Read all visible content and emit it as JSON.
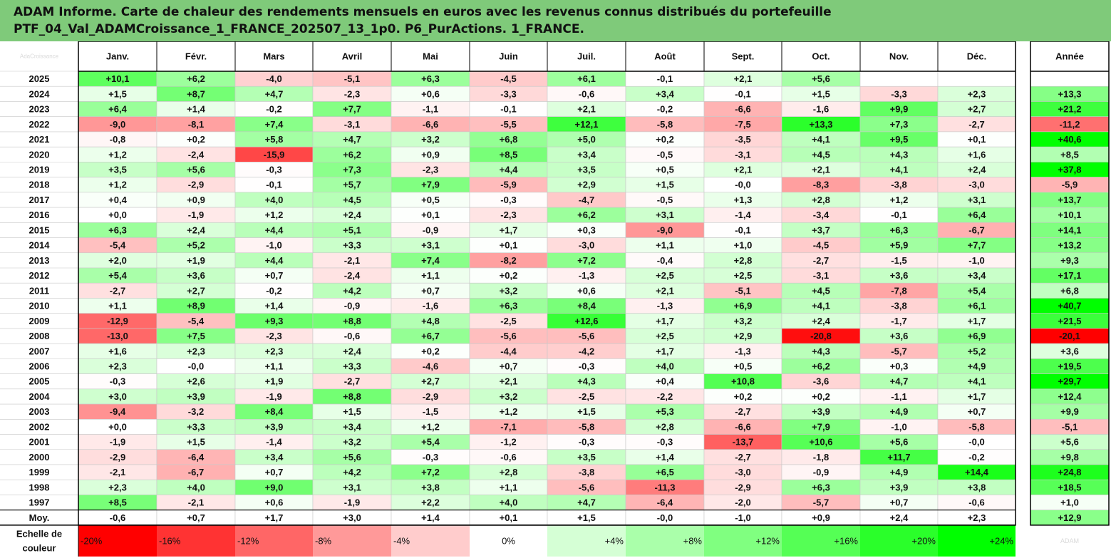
{
  "header": {
    "title_line1": "ADAM Informe. Carte de chaleur des rendements mensuels en euros avec les revenus connus distribués du portefeuille",
    "title_line2": "PTF_04_Val_ADAMCroissance_1_FRANCE_202507_13_1p0. P6_PurActions. 1_FRANCE."
  },
  "corner_watermark": "AdaCroissance",
  "scale_label": [
    "Echelle de",
    "couleur"
  ],
  "scale_steps": [
    "-20%",
    "-16%",
    "-12%",
    "-8%",
    "-4%",
    "0%",
    "+4%",
    "+8%",
    "+12%",
    "+16%",
    "+20%",
    "+24%"
  ],
  "scale_steps_values": [
    -20,
    -16,
    -12,
    -8,
    -4,
    0,
    4,
    8,
    12,
    16,
    20,
    24
  ],
  "bottom_right_watermark": "ADAM",
  "colors": {
    "header_bg": "#7fca7a",
    "negative_max": "#ff0000",
    "positive_max": "#00ff00",
    "neutral": "#ffffff",
    "grid": "#c8c8c8",
    "border": "#000000"
  },
  "chart_data": {
    "type": "heatmap",
    "title": "ADAM Informe. Carte de chaleur des rendements mensuels en euros avec les revenus connus distribués du portefeuille PTF_04_Val_ADAMCroissance_1_FRANCE_202507_13_1p0. P6_PurActions. 1_FRANCE.",
    "columns": [
      "Janv.",
      "Févr.",
      "Mars",
      "Avril",
      "Mai",
      "Juin",
      "Juil.",
      "Août",
      "Sept.",
      "Oct.",
      "Nov.",
      "Déc."
    ],
    "year_column": "Année",
    "rows": [
      {
        "label": "2025",
        "values": [
          "+10,1",
          "+6,2",
          "-4,0",
          "-5,1",
          "+6,3",
          "-4,5",
          "+6,1",
          "-0,1",
          "+2,1",
          "+5,6",
          "",
          ""
        ],
        "year": ""
      },
      {
        "label": "2024",
        "values": [
          "+1,5",
          "+8,7",
          "+4,7",
          "-2,3",
          "+0,6",
          "-3,3",
          "-0,6",
          "+3,4",
          "-0,1",
          "+1,5",
          "-3,3",
          "+2,3"
        ],
        "year": "+13,3"
      },
      {
        "label": "2023",
        "values": [
          "+6,4",
          "+1,4",
          "-0,2",
          "+7,7",
          "-1,1",
          "-0,1",
          "+2,1",
          "-0,2",
          "-6,6",
          "-1,6",
          "+9,9",
          "+2,7"
        ],
        "year": "+21,2"
      },
      {
        "label": "2022",
        "values": [
          "-9,0",
          "-8,1",
          "+7,4",
          "-3,1",
          "-6,6",
          "-5,5",
          "+12,1",
          "-5,8",
          "-7,5",
          "+13,3",
          "+7,3",
          "-2,7"
        ],
        "year": "-11,2"
      },
      {
        "label": "2021",
        "values": [
          "-0,8",
          "+0,2",
          "+5,8",
          "+4,7",
          "+3,2",
          "+6,8",
          "+5,0",
          "+0,2",
          "-3,5",
          "+4,1",
          "+9,5",
          "+0,1"
        ],
        "year": "+40,6"
      },
      {
        "label": "2020",
        "values": [
          "+1,2",
          "-2,4",
          "-15,9",
          "+6,2",
          "+0,9",
          "+8,5",
          "+3,4",
          "-0,5",
          "-3,1",
          "+4,5",
          "+4,3",
          "+1,6"
        ],
        "year": "+8,5"
      },
      {
        "label": "2019",
        "values": [
          "+3,5",
          "+5,6",
          "-0,3",
          "+7,3",
          "-2,3",
          "+4,4",
          "+3,5",
          "+0,5",
          "+2,1",
          "+2,1",
          "+4,1",
          "+2,4"
        ],
        "year": "+37,8"
      },
      {
        "label": "2018",
        "values": [
          "+1,2",
          "-2,9",
          "-0,1",
          "+5,7",
          "+7,9",
          "-5,9",
          "+2,9",
          "+1,5",
          "-0,0",
          "-8,3",
          "-3,8",
          "-3,0"
        ],
        "year": "-5,9"
      },
      {
        "label": "2017",
        "values": [
          "+0,4",
          "+0,9",
          "+4,0",
          "+4,5",
          "+0,5",
          "-0,3",
          "-4,7",
          "-0,5",
          "+1,3",
          "+2,8",
          "+1,2",
          "+3,1"
        ],
        "year": "+13,7"
      },
      {
        "label": "2016",
        "values": [
          "+0,0",
          "-1,9",
          "+1,2",
          "+2,4",
          "+0,1",
          "-2,3",
          "+6,2",
          "+3,1",
          "-1,4",
          "-3,4",
          "-0,1",
          "+6,4"
        ],
        "year": "+10,1"
      },
      {
        "label": "2015",
        "values": [
          "+6,3",
          "+2,4",
          "+4,4",
          "+5,1",
          "-0,9",
          "+1,7",
          "+0,3",
          "-9,0",
          "-0,1",
          "+3,7",
          "+6,3",
          "-6,7"
        ],
        "year": "+14,1"
      },
      {
        "label": "2014",
        "values": [
          "-5,4",
          "+5,2",
          "-1,0",
          "+3,3",
          "+3,1",
          "+0,1",
          "-3,0",
          "+1,1",
          "+1,0",
          "-4,5",
          "+5,9",
          "+7,7"
        ],
        "year": "+13,2"
      },
      {
        "label": "2013",
        "values": [
          "+2,0",
          "+1,9",
          "+4,4",
          "-2,1",
          "+7,4",
          "-8,2",
          "+7,2",
          "-0,4",
          "+2,8",
          "-2,7",
          "-1,5",
          "-1,0"
        ],
        "year": "+9,3"
      },
      {
        "label": "2012",
        "values": [
          "+5,4",
          "+3,6",
          "+0,7",
          "-2,4",
          "+1,1",
          "+0,2",
          "-1,3",
          "+2,5",
          "+2,5",
          "-3,1",
          "+3,6",
          "+3,4"
        ],
        "year": "+17,1"
      },
      {
        "label": "2011",
        "values": [
          "-2,7",
          "+2,7",
          "-0,2",
          "+4,2",
          "+0,7",
          "+3,2",
          "+0,6",
          "+2,1",
          "-5,1",
          "+4,5",
          "-7,8",
          "+5,4"
        ],
        "year": "+6,8"
      },
      {
        "label": "2010",
        "values": [
          "+1,1",
          "+8,9",
          "+1,4",
          "-0,9",
          "-1,6",
          "+6,3",
          "+8,4",
          "-1,3",
          "+6,9",
          "+4,1",
          "-3,8",
          "+6,1"
        ],
        "year": "+40,7"
      },
      {
        "label": "2009",
        "values": [
          "-12,9",
          "-5,4",
          "+9,3",
          "+8,8",
          "+4,8",
          "-2,5",
          "+12,6",
          "+1,7",
          "+3,2",
          "+2,4",
          "-1,7",
          "+1,7"
        ],
        "year": "+21,5"
      },
      {
        "label": "2008",
        "values": [
          "-13,0",
          "+7,5",
          "-2,3",
          "-0,6",
          "+6,7",
          "-5,6",
          "-5,6",
          "+2,5",
          "+2,9",
          "-20,8",
          "+3,6",
          "+6,9"
        ],
        "year": "-20,1"
      },
      {
        "label": "2007",
        "values": [
          "+1,6",
          "+2,3",
          "+2,3",
          "+2,4",
          "+0,2",
          "-4,4",
          "-4,2",
          "+1,7",
          "-1,3",
          "+4,3",
          "-5,7",
          "+5,2"
        ],
        "year": "+3,6"
      },
      {
        "label": "2006",
        "values": [
          "+2,3",
          "-0,0",
          "+1,1",
          "+3,3",
          "-4,6",
          "+0,7",
          "-0,3",
          "+4,0",
          "+0,5",
          "+6,2",
          "+0,3",
          "+4,9"
        ],
        "year": "+19,5"
      },
      {
        "label": "2005",
        "values": [
          "-0,3",
          "+2,6",
          "+1,9",
          "-2,7",
          "+2,7",
          "+2,1",
          "+4,3",
          "+0,4",
          "+10,8",
          "-3,6",
          "+4,7",
          "+4,1"
        ],
        "year": "+29,7"
      },
      {
        "label": "2004",
        "values": [
          "+3,0",
          "+3,9",
          "-1,9",
          "+8,8",
          "-2,9",
          "+3,2",
          "-2,5",
          "-2,2",
          "+0,2",
          "+0,2",
          "-1,1",
          "+1,7"
        ],
        "year": "+12,4"
      },
      {
        "label": "2003",
        "values": [
          "-9,4",
          "-3,2",
          "+8,4",
          "+1,5",
          "-1,5",
          "+1,2",
          "+1,5",
          "+5,3",
          "-2,7",
          "+3,9",
          "+4,9",
          "+0,7"
        ],
        "year": "+9,9"
      },
      {
        "label": "2002",
        "values": [
          "+0,0",
          "+3,3",
          "+3,9",
          "+3,4",
          "+1,2",
          "-7,1",
          "-5,8",
          "+2,8",
          "-6,6",
          "+7,9",
          "-1,0",
          "-5,8"
        ],
        "year": "-5,1"
      },
      {
        "label": "2001",
        "values": [
          "-1,9",
          "+1,5",
          "-1,4",
          "+3,2",
          "+5,4",
          "-1,2",
          "-0,3",
          "-0,3",
          "-13,7",
          "+10,6",
          "+5,6",
          "-0,0"
        ],
        "year": "+5,6"
      },
      {
        "label": "2000",
        "values": [
          "-2,9",
          "-6,4",
          "+3,4",
          "+5,6",
          "-0,3",
          "-0,6",
          "+3,5",
          "+1,4",
          "-2,7",
          "-1,8",
          "+11,7",
          "-0,2"
        ],
        "year": "+9,8"
      },
      {
        "label": "1999",
        "values": [
          "-2,1",
          "-6,7",
          "+0,7",
          "+4,2",
          "+7,2",
          "+2,8",
          "-3,8",
          "+6,5",
          "-3,0",
          "-0,9",
          "+4,9",
          "+14,4"
        ],
        "year": "+24,8"
      },
      {
        "label": "1998",
        "values": [
          "+2,3",
          "+4,0",
          "+9,0",
          "+3,1",
          "+3,8",
          "+1,1",
          "-5,6",
          "-11,3",
          "-2,9",
          "+6,3",
          "+3,9",
          "+3,8"
        ],
        "year": "+18,5"
      },
      {
        "label": "1997",
        "values": [
          "+8,5",
          "-2,1",
          "+0,6",
          "-1,9",
          "+2,2",
          "+4,0",
          "+4,7",
          "-6,4",
          "-2,0",
          "-5,7",
          "+0,7",
          "-0,6"
        ],
        "year": "+1,0"
      }
    ],
    "average_row": {
      "label": "Moy.",
      "values": [
        "-0,6",
        "+0,7",
        "+1,7",
        "+3,0",
        "+1,4",
        "+0,1",
        "+1,5",
        "-0,0",
        "-1,0",
        "+0,9",
        "+2,4",
        "+2,3"
      ],
      "year": "+12,9"
    }
  }
}
